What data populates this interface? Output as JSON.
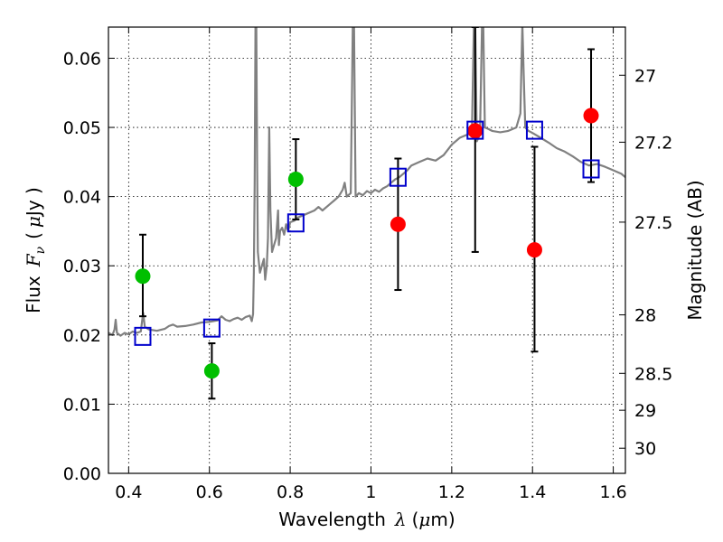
{
  "chart_data": {
    "type": "scatter",
    "xlabel": {
      "prefix": "Wavelength",
      "var": "λ",
      "unit_open": "(",
      "unit_mu": "μ",
      "unit_rest": "m)"
    },
    "ylabel": {
      "prefix": "Flux",
      "var": "F",
      "sub": "ν",
      "unit_open": "(",
      "unit_mu": "μ",
      "unit_rest": "Jy )"
    },
    "y2label": "Magnitude (AB)",
    "xlim": [
      0.35,
      1.63
    ],
    "ylim": [
      0.0,
      0.0645
    ],
    "grid": true,
    "xticks": [
      {
        "v": 0.4,
        "label": "0.4"
      },
      {
        "v": 0.6,
        "label": "0.6"
      },
      {
        "v": 0.8,
        "label": "0.8"
      },
      {
        "v": 1.0,
        "label": "1"
      },
      {
        "v": 1.2,
        "label": "1.2"
      },
      {
        "v": 1.4,
        "label": "1.4"
      },
      {
        "v": 1.6,
        "label": "1.6"
      }
    ],
    "yticks": [
      {
        "v": 0.0,
        "label": "0.00"
      },
      {
        "v": 0.01,
        "label": "0.01"
      },
      {
        "v": 0.02,
        "label": "0.02"
      },
      {
        "v": 0.03,
        "label": "0.03"
      },
      {
        "v": 0.04,
        "label": "0.04"
      },
      {
        "v": 0.05,
        "label": "0.05"
      },
      {
        "v": 0.06,
        "label": "0.06"
      }
    ],
    "y2ticks": [
      {
        "mag": 27,
        "label": "27"
      },
      {
        "mag": 27.2,
        "label": "27.2"
      },
      {
        "mag": 27.5,
        "label": "27.5"
      },
      {
        "mag": 28,
        "label": "28"
      },
      {
        "mag": 28.5,
        "label": "28.5"
      },
      {
        "mag": 29,
        "label": "29"
      },
      {
        "mag": 30,
        "label": "30"
      }
    ],
    "colors": {
      "spectrum": "#808080",
      "green": "#00bf00",
      "red": "#ff0000",
      "model_box": "#0000cc",
      "errorbar": "#000000",
      "grid": "#000000"
    },
    "series": [
      {
        "marker": "circle",
        "color": "green",
        "points": [
          {
            "x": 0.435,
            "y": 0.0285,
            "ylo": 0.0227,
            "yhi": 0.0345
          },
          {
            "x": 0.606,
            "y": 0.0148,
            "ylo": 0.0108,
            "yhi": 0.0188
          },
          {
            "x": 0.814,
            "y": 0.0425,
            "ylo": 0.0367,
            "yhi": 0.0483
          }
        ]
      },
      {
        "marker": "circle",
        "color": "red",
        "points": [
          {
            "x": 1.067,
            "y": 0.036,
            "ylo": 0.0265,
            "yhi": 0.0455
          },
          {
            "x": 1.258,
            "y": 0.0495,
            "ylo": 0.032,
            "yhi": 0.0645
          },
          {
            "x": 1.405,
            "y": 0.0323,
            "ylo": 0.0176,
            "yhi": 0.0472
          },
          {
            "x": 1.545,
            "y": 0.0517,
            "ylo": 0.0421,
            "yhi": 0.0613
          }
        ]
      },
      {
        "marker": "square-open",
        "color": "model_box",
        "points": [
          {
            "x": 0.435,
            "y": 0.0198
          },
          {
            "x": 0.606,
            "y": 0.021
          },
          {
            "x": 0.814,
            "y": 0.0362
          },
          {
            "x": 1.067,
            "y": 0.0428
          },
          {
            "x": 1.258,
            "y": 0.0496
          },
          {
            "x": 1.405,
            "y": 0.0496
          },
          {
            "x": 1.545,
            "y": 0.044
          }
        ]
      }
    ],
    "spectrum": [
      [
        0.35,
        0.0203
      ],
      [
        0.36,
        0.02
      ],
      [
        0.365,
        0.0208
      ],
      [
        0.368,
        0.0222
      ],
      [
        0.371,
        0.0203
      ],
      [
        0.38,
        0.0199
      ],
      [
        0.39,
        0.0203
      ],
      [
        0.4,
        0.0201
      ],
      [
        0.41,
        0.0205
      ],
      [
        0.42,
        0.0203
      ],
      [
        0.43,
        0.0205
      ],
      [
        0.436,
        0.0232
      ],
      [
        0.44,
        0.0212
      ],
      [
        0.445,
        0.021
      ],
      [
        0.45,
        0.0208
      ],
      [
        0.47,
        0.0206
      ],
      [
        0.49,
        0.0209
      ],
      [
        0.5,
        0.0213
      ],
      [
        0.51,
        0.0215
      ],
      [
        0.52,
        0.0212
      ],
      [
        0.54,
        0.0213
      ],
      [
        0.56,
        0.0215
      ],
      [
        0.58,
        0.0218
      ],
      [
        0.6,
        0.0219
      ],
      [
        0.62,
        0.0221
      ],
      [
        0.63,
        0.0227
      ],
      [
        0.64,
        0.0222
      ],
      [
        0.65,
        0.022
      ],
      [
        0.66,
        0.0223
      ],
      [
        0.67,
        0.0225
      ],
      [
        0.68,
        0.0222
      ],
      [
        0.69,
        0.0226
      ],
      [
        0.7,
        0.0228
      ],
      [
        0.705,
        0.022
      ],
      [
        0.708,
        0.023
      ],
      [
        0.71,
        0.029
      ],
      [
        0.712,
        0.042
      ],
      [
        0.714,
        0.065
      ],
      [
        0.716,
        0.065
      ],
      [
        0.718,
        0.045
      ],
      [
        0.72,
        0.032
      ],
      [
        0.725,
        0.029
      ],
      [
        0.73,
        0.03
      ],
      [
        0.735,
        0.031
      ],
      [
        0.738,
        0.028
      ],
      [
        0.742,
        0.03
      ],
      [
        0.745,
        0.034
      ],
      [
        0.748,
        0.05
      ],
      [
        0.751,
        0.038
      ],
      [
        0.755,
        0.032
      ],
      [
        0.76,
        0.033
      ],
      [
        0.765,
        0.034
      ],
      [
        0.77,
        0.038
      ],
      [
        0.772,
        0.033
      ],
      [
        0.775,
        0.035
      ],
      [
        0.78,
        0.0355
      ],
      [
        0.785,
        0.0345
      ],
      [
        0.79,
        0.036
      ],
      [
        0.795,
        0.035
      ],
      [
        0.8,
        0.0363
      ],
      [
        0.81,
        0.0365
      ],
      [
        0.82,
        0.037
      ],
      [
        0.84,
        0.0375
      ],
      [
        0.86,
        0.038
      ],
      [
        0.87,
        0.0385
      ],
      [
        0.88,
        0.038
      ],
      [
        0.9,
        0.039
      ],
      [
        0.91,
        0.0395
      ],
      [
        0.92,
        0.04
      ],
      [
        0.93,
        0.041
      ],
      [
        0.935,
        0.042
      ],
      [
        0.94,
        0.04
      ],
      [
        0.95,
        0.0405
      ],
      [
        0.955,
        0.065
      ],
      [
        0.958,
        0.065
      ],
      [
        0.962,
        0.04
      ],
      [
        0.97,
        0.0405
      ],
      [
        0.98,
        0.0402
      ],
      [
        0.99,
        0.0408
      ],
      [
        1.0,
        0.0405
      ],
      [
        1.01,
        0.041
      ],
      [
        1.02,
        0.0407
      ],
      [
        1.03,
        0.0412
      ],
      [
        1.04,
        0.0415
      ],
      [
        1.05,
        0.042
      ],
      [
        1.06,
        0.0425
      ],
      [
        1.07,
        0.0428
      ],
      [
        1.08,
        0.0433
      ],
      [
        1.09,
        0.0438
      ],
      [
        1.1,
        0.0445
      ],
      [
        1.12,
        0.045
      ],
      [
        1.14,
        0.0455
      ],
      [
        1.16,
        0.0452
      ],
      [
        1.18,
        0.046
      ],
      [
        1.2,
        0.0475
      ],
      [
        1.22,
        0.0485
      ],
      [
        1.24,
        0.049
      ],
      [
        1.25,
        0.0495
      ],
      [
        1.255,
        0.065
      ],
      [
        1.258,
        0.065
      ],
      [
        1.262,
        0.048
      ],
      [
        1.27,
        0.049
      ],
      [
        1.275,
        0.065
      ],
      [
        1.278,
        0.065
      ],
      [
        1.282,
        0.05
      ],
      [
        1.29,
        0.0498
      ],
      [
        1.3,
        0.0495
      ],
      [
        1.32,
        0.0493
      ],
      [
        1.34,
        0.0495
      ],
      [
        1.36,
        0.05
      ],
      [
        1.37,
        0.052
      ],
      [
        1.375,
        0.065
      ],
      [
        1.378,
        0.058
      ],
      [
        1.382,
        0.05
      ],
      [
        1.39,
        0.0495
      ],
      [
        1.4,
        0.0492
      ],
      [
        1.42,
        0.0485
      ],
      [
        1.44,
        0.0478
      ],
      [
        1.46,
        0.047
      ],
      [
        1.48,
        0.0465
      ],
      [
        1.5,
        0.0458
      ],
      [
        1.52,
        0.045
      ],
      [
        1.54,
        0.0445
      ],
      [
        1.56,
        0.0447
      ],
      [
        1.58,
        0.0443
      ],
      [
        1.6,
        0.0438
      ],
      [
        1.62,
        0.0433
      ],
      [
        1.63,
        0.0428
      ]
    ]
  }
}
